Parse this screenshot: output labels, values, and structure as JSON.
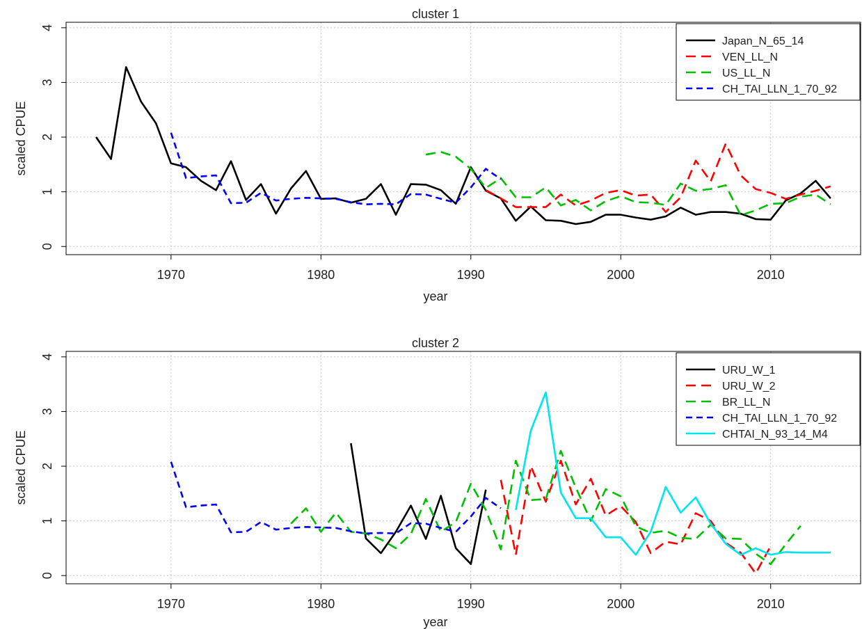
{
  "chart_data": [
    {
      "type": "line",
      "title": "cluster 1",
      "xlabel": "year",
      "ylabel": "scaled CPUE",
      "xlim": [
        1963,
        2016
      ],
      "ylim": [
        -0.15,
        4.1
      ],
      "xticks": [
        1970,
        1980,
        1990,
        2000,
        2010
      ],
      "yticks": [
        0,
        1,
        2,
        3,
        4
      ],
      "grid": true,
      "legend_position": "top-right",
      "series": [
        {
          "name": "Japan_N_65_14",
          "color": "#000000",
          "dash": "solid",
          "x": [
            1965,
            1966,
            1967,
            1968,
            1969,
            1970,
            1971,
            1972,
            1973,
            1974,
            1975,
            1976,
            1977,
            1978,
            1979,
            1980,
            1981,
            1982,
            1983,
            1984,
            1985,
            1986,
            1987,
            1988,
            1989,
            1990,
            1991,
            1992,
            1993,
            1994,
            1995,
            1996,
            1997,
            1998,
            1999,
            2000,
            2001,
            2002,
            2003,
            2004,
            2005,
            2006,
            2007,
            2008,
            2009,
            2010,
            2011,
            2012,
            2013,
            2014
          ],
          "y": [
            2.0,
            1.6,
            3.28,
            2.65,
            2.25,
            1.52,
            1.45,
            1.2,
            1.03,
            1.56,
            0.85,
            1.14,
            0.6,
            1.06,
            1.38,
            0.87,
            0.88,
            0.8,
            0.87,
            1.14,
            0.58,
            1.14,
            1.13,
            1.03,
            0.78,
            1.45,
            1.02,
            0.88,
            0.47,
            0.73,
            0.48,
            0.47,
            0.41,
            0.45,
            0.58,
            0.58,
            0.53,
            0.49,
            0.55,
            0.71,
            0.58,
            0.63,
            0.63,
            0.6,
            0.5,
            0.49,
            0.84,
            0.97,
            1.2,
            0.88
          ]
        },
        {
          "name": "VEN_LL_N",
          "color": "#ff0000",
          "dash": "dashed",
          "x": [
            1991,
            1992,
            1993,
            1994,
            1995,
            1996,
            1997,
            1998,
            1999,
            2000,
            2001,
            2002,
            2003,
            2004,
            2005,
            2006,
            2007,
            2008,
            2009,
            2010,
            2011,
            2012,
            2013,
            2014
          ],
          "y": [
            1.03,
            0.88,
            0.72,
            0.72,
            0.72,
            0.95,
            0.75,
            0.84,
            0.98,
            1.03,
            0.93,
            0.95,
            0.63,
            0.9,
            1.57,
            1.19,
            1.88,
            1.3,
            1.05,
            0.98,
            0.87,
            0.95,
            1.02,
            1.1
          ]
        },
        {
          "name": "US_LL_N",
          "color": "#00c000",
          "dash": "dashed",
          "x": [
            1987,
            1988,
            1989,
            1990,
            1991,
            1992,
            1993,
            1994,
            1995,
            1996,
            1997,
            1998,
            1999,
            2000,
            2001,
            2002,
            2003,
            2004,
            2005,
            2006,
            2007,
            2008,
            2009,
            2010,
            2011,
            2012,
            2013,
            2014
          ],
          "y": [
            1.68,
            1.73,
            1.64,
            1.42,
            1.07,
            1.25,
            0.9,
            0.9,
            1.08,
            0.75,
            0.85,
            0.66,
            0.83,
            0.92,
            0.81,
            0.8,
            0.76,
            1.15,
            1.02,
            1.05,
            1.12,
            0.57,
            0.66,
            0.78,
            0.79,
            0.91,
            0.95,
            0.77
          ]
        },
        {
          "name": "CH_TAI_LLN_1_70_92",
          "color": "#0000ff",
          "dash": "short-dashed",
          "x": [
            1970,
            1971,
            1972,
            1973,
            1974,
            1975,
            1976,
            1977,
            1978,
            1979,
            1980,
            1981,
            1982,
            1983,
            1984,
            1985,
            1986,
            1987,
            1988,
            1989,
            1990,
            1991,
            1992
          ],
          "y": [
            2.08,
            1.25,
            1.28,
            1.3,
            0.79,
            0.8,
            0.98,
            0.84,
            0.87,
            0.89,
            0.88,
            0.87,
            0.81,
            0.77,
            0.78,
            0.77,
            0.96,
            0.95,
            0.87,
            0.8,
            1.08,
            1.42,
            1.23
          ]
        }
      ]
    },
    {
      "type": "line",
      "title": "cluster 2",
      "xlabel": "year",
      "ylabel": "scaled CPUE",
      "xlim": [
        1963,
        2016
      ],
      "ylim": [
        -0.15,
        4.1
      ],
      "xticks": [
        1970,
        1980,
        1990,
        2000,
        2010
      ],
      "yticks": [
        0,
        1,
        2,
        3,
        4
      ],
      "grid": true,
      "legend_position": "top-right",
      "series": [
        {
          "name": "URU_W_1",
          "color": "#000000",
          "dash": "solid",
          "x": [
            1982,
            1983,
            1984,
            1985,
            1986,
            1987,
            1988,
            1989,
            1990,
            1991
          ],
          "y": [
            2.42,
            0.68,
            0.41,
            0.8,
            1.28,
            0.67,
            1.46,
            0.5,
            0.21,
            1.57
          ]
        },
        {
          "name": "URU_W_2",
          "color": "#ff0000",
          "dash": "dashed",
          "x": [
            1992,
            1993,
            1994,
            1995,
            1996,
            1997,
            1998,
            1999,
            2000,
            2001,
            2002,
            2003,
            2004,
            2005,
            2006,
            2007,
            2008,
            2009,
            2010
          ],
          "y": [
            1.75,
            0.38,
            2.0,
            1.35,
            2.1,
            1.3,
            1.77,
            1.1,
            1.27,
            0.98,
            0.41,
            0.62,
            0.57,
            1.14,
            1.0,
            0.6,
            0.42,
            0.04,
            0.54
          ]
        },
        {
          "name": "BR_LL_N",
          "color": "#00c000",
          "dash": "dashed",
          "x": [
            1978,
            1979,
            1980,
            1981,
            1982,
            1983,
            1984,
            1985,
            1986,
            1987,
            1988,
            1989,
            1990,
            1991,
            1992,
            1993,
            1994,
            1995,
            1996,
            1997,
            1998,
            1999,
            2000,
            2001,
            2002,
            2003,
            2004,
            2005,
            2006,
            2007,
            2008,
            2009,
            2010,
            2011,
            2012
          ],
          "y": [
            0.95,
            1.23,
            0.8,
            1.15,
            0.8,
            0.77,
            0.66,
            0.5,
            0.76,
            1.4,
            0.8,
            0.98,
            1.68,
            1.2,
            0.48,
            2.1,
            1.38,
            1.4,
            2.28,
            1.61,
            1.0,
            1.58,
            1.45,
            0.9,
            0.78,
            0.82,
            0.69,
            0.67,
            0.93,
            0.68,
            0.67,
            0.4,
            0.21,
            0.57,
            0.91
          ]
        },
        {
          "name": "CH_TAI_LLN_1_70_92",
          "color": "#0000ff",
          "dash": "short-dashed",
          "x": [
            1970,
            1971,
            1972,
            1973,
            1974,
            1975,
            1976,
            1977,
            1978,
            1979,
            1980,
            1981,
            1982,
            1983,
            1984,
            1985,
            1986,
            1987,
            1988,
            1989,
            1990,
            1991,
            1992
          ],
          "y": [
            2.08,
            1.25,
            1.28,
            1.3,
            0.79,
            0.8,
            0.98,
            0.84,
            0.87,
            0.89,
            0.88,
            0.87,
            0.81,
            0.77,
            0.78,
            0.77,
            0.96,
            0.95,
            0.87,
            0.8,
            1.08,
            1.42,
            1.23
          ]
        },
        {
          "name": "CHTAI_N_93_14_M4",
          "color": "#00e5ee",
          "dash": "solid",
          "x": [
            1993,
            1994,
            1995,
            1996,
            1997,
            1998,
            1999,
            2000,
            2001,
            2002,
            2003,
            2004,
            2005,
            2006,
            2007,
            2008,
            2009,
            2010,
            2011,
            2012,
            2013,
            2014
          ],
          "y": [
            1.2,
            2.65,
            3.35,
            1.52,
            1.05,
            1.05,
            0.7,
            0.7,
            0.38,
            0.8,
            1.62,
            1.15,
            1.43,
            0.95,
            0.58,
            0.38,
            0.5,
            0.38,
            0.43,
            0.42,
            0.42,
            0.42
          ]
        }
      ]
    }
  ]
}
